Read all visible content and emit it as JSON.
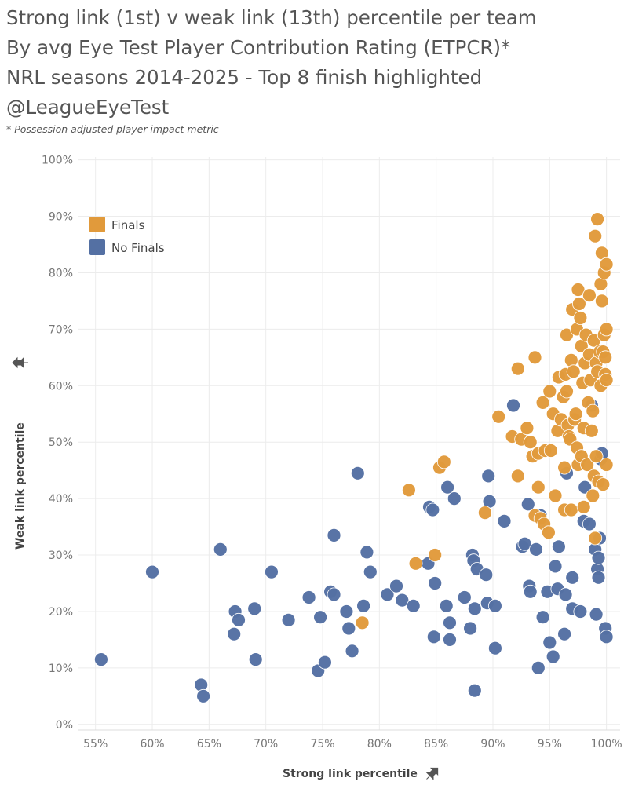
{
  "header": {
    "lines": [
      "Strong link (1st) v weak link (13th) percentile per team",
      "By avg Eye Test Player Contribution Rating (ETPCR)*",
      "NRL seasons 2014-2025 - Top 8 finish highlighted",
      "@LeagueEyeTest"
    ],
    "footnote": "* Possession adjusted player impact metric"
  },
  "chart_data": {
    "type": "scatter",
    "xlabel": "Strong link percentile",
    "ylabel": "Weak link percentile",
    "xlim": [
      0.535,
      1.012
    ],
    "ylim": [
      -0.01,
      1.005
    ],
    "x_ticks": [
      "55%",
      "60%",
      "65%",
      "70%",
      "75%",
      "80%",
      "85%",
      "90%",
      "95%",
      "100%"
    ],
    "x_tick_values": [
      0.55,
      0.6,
      0.65,
      0.7,
      0.75,
      0.8,
      0.85,
      0.9,
      0.95,
      1.0
    ],
    "y_ticks": [
      "0%",
      "10%",
      "20%",
      "30%",
      "40%",
      "50%",
      "60%",
      "70%",
      "80%",
      "90%",
      "100%"
    ],
    "y_tick_values": [
      0.0,
      0.1,
      0.2,
      0.3,
      0.4,
      0.5,
      0.6,
      0.7,
      0.8,
      0.9,
      1.0
    ],
    "grid": true,
    "legend_position": "top-left",
    "series": [
      {
        "name": "No Finals",
        "color": "#5470a3",
        "points": [
          [
            0.555,
            0.115
          ],
          [
            0.6,
            0.27
          ],
          [
            0.643,
            0.07
          ],
          [
            0.645,
            0.05
          ],
          [
            0.66,
            0.31
          ],
          [
            0.672,
            0.16
          ],
          [
            0.673,
            0.2
          ],
          [
            0.676,
            0.185
          ],
          [
            0.69,
            0.205
          ],
          [
            0.691,
            0.115
          ],
          [
            0.705,
            0.27
          ],
          [
            0.72,
            0.185
          ],
          [
            0.738,
            0.225
          ],
          [
            0.746,
            0.095
          ],
          [
            0.748,
            0.19
          ],
          [
            0.752,
            0.11
          ],
          [
            0.757,
            0.235
          ],
          [
            0.76,
            0.23
          ],
          [
            0.76,
            0.335
          ],
          [
            0.771,
            0.2
          ],
          [
            0.773,
            0.17
          ],
          [
            0.776,
            0.13
          ],
          [
            0.781,
            0.445
          ],
          [
            0.786,
            0.21
          ],
          [
            0.789,
            0.305
          ],
          [
            0.792,
            0.27
          ],
          [
            0.807,
            0.23
          ],
          [
            0.815,
            0.245
          ],
          [
            0.82,
            0.22
          ],
          [
            0.83,
            0.21
          ],
          [
            0.843,
            0.285
          ],
          [
            0.844,
            0.385
          ],
          [
            0.847,
            0.38
          ],
          [
            0.848,
            0.155
          ],
          [
            0.849,
            0.25
          ],
          [
            0.859,
            0.21
          ],
          [
            0.86,
            0.42
          ],
          [
            0.862,
            0.15
          ],
          [
            0.862,
            0.18
          ],
          [
            0.866,
            0.4
          ],
          [
            0.875,
            0.225
          ],
          [
            0.88,
            0.17
          ],
          [
            0.882,
            0.3
          ],
          [
            0.883,
            0.29
          ],
          [
            0.884,
            0.06
          ],
          [
            0.884,
            0.205
          ],
          [
            0.886,
            0.275
          ],
          [
            0.894,
            0.265
          ],
          [
            0.895,
            0.215
          ],
          [
            0.896,
            0.44
          ],
          [
            0.897,
            0.395
          ],
          [
            0.902,
            0.21
          ],
          [
            0.902,
            0.135
          ],
          [
            0.91,
            0.36
          ],
          [
            0.918,
            0.565
          ],
          [
            0.926,
            0.315
          ],
          [
            0.928,
            0.32
          ],
          [
            0.931,
            0.39
          ],
          [
            0.932,
            0.245
          ],
          [
            0.933,
            0.235
          ],
          [
            0.938,
            0.31
          ],
          [
            0.94,
            0.1
          ],
          [
            0.942,
            0.37
          ],
          [
            0.944,
            0.19
          ],
          [
            0.948,
            0.235
          ],
          [
            0.95,
            0.145
          ],
          [
            0.953,
            0.12
          ],
          [
            0.955,
            0.28
          ],
          [
            0.957,
            0.24
          ],
          [
            0.958,
            0.315
          ],
          [
            0.963,
            0.16
          ],
          [
            0.964,
            0.23
          ],
          [
            0.965,
            0.445
          ],
          [
            0.97,
            0.26
          ],
          [
            0.97,
            0.205
          ],
          [
            0.977,
            0.2
          ],
          [
            0.98,
            0.36
          ],
          [
            0.981,
            0.42
          ],
          [
            0.985,
            0.355
          ],
          [
            0.987,
            0.565
          ],
          [
            0.99,
            0.31
          ],
          [
            0.991,
            0.195
          ],
          [
            0.992,
            0.275
          ],
          [
            0.993,
            0.26
          ],
          [
            0.994,
            0.33
          ],
          [
            0.995,
            0.47
          ],
          [
            0.996,
            0.48
          ],
          [
            0.999,
            0.17
          ],
          [
            1.0,
            0.155
          ],
          [
            0.993,
            0.295
          ]
        ]
      },
      {
        "name": "Finals",
        "color": "#e19a3b",
        "points": [
          [
            0.785,
            0.18
          ],
          [
            0.826,
            0.415
          ],
          [
            0.832,
            0.285
          ],
          [
            0.849,
            0.3
          ],
          [
            0.853,
            0.455
          ],
          [
            0.857,
            0.465
          ],
          [
            0.893,
            0.375
          ],
          [
            0.905,
            0.545
          ],
          [
            0.917,
            0.51
          ],
          [
            0.922,
            0.44
          ],
          [
            0.922,
            0.63
          ],
          [
            0.925,
            0.505
          ],
          [
            0.93,
            0.525
          ],
          [
            0.933,
            0.5
          ],
          [
            0.935,
            0.475
          ],
          [
            0.937,
            0.37
          ],
          [
            0.937,
            0.65
          ],
          [
            0.94,
            0.48
          ],
          [
            0.94,
            0.42
          ],
          [
            0.942,
            0.365
          ],
          [
            0.944,
            0.57
          ],
          [
            0.945,
            0.355
          ],
          [
            0.946,
            0.485
          ],
          [
            0.949,
            0.34
          ],
          [
            0.95,
            0.59
          ],
          [
            0.951,
            0.485
          ],
          [
            0.953,
            0.55
          ],
          [
            0.955,
            0.405
          ],
          [
            0.957,
            0.52
          ],
          [
            0.958,
            0.615
          ],
          [
            0.96,
            0.54
          ],
          [
            0.962,
            0.58
          ],
          [
            0.963,
            0.455
          ],
          [
            0.963,
            0.38
          ],
          [
            0.964,
            0.62
          ],
          [
            0.965,
            0.69
          ],
          [
            0.965,
            0.59
          ],
          [
            0.966,
            0.53
          ],
          [
            0.967,
            0.51
          ],
          [
            0.968,
            0.505
          ],
          [
            0.969,
            0.645
          ],
          [
            0.969,
            0.38
          ],
          [
            0.97,
            0.735
          ],
          [
            0.971,
            0.625
          ],
          [
            0.972,
            0.54
          ],
          [
            0.973,
            0.55
          ],
          [
            0.974,
            0.49
          ],
          [
            0.974,
            0.7
          ],
          [
            0.975,
            0.77
          ],
          [
            0.975,
            0.46
          ],
          [
            0.976,
            0.745
          ],
          [
            0.977,
            0.72
          ],
          [
            0.978,
            0.67
          ],
          [
            0.978,
            0.475
          ],
          [
            0.979,
            0.605
          ],
          [
            0.98,
            0.525
          ],
          [
            0.98,
            0.385
          ],
          [
            0.981,
            0.64
          ],
          [
            0.982,
            0.69
          ],
          [
            0.983,
            0.46
          ],
          [
            0.984,
            0.57
          ],
          [
            0.985,
            0.76
          ],
          [
            0.985,
            0.655
          ],
          [
            0.986,
            0.61
          ],
          [
            0.987,
            0.52
          ],
          [
            0.988,
            0.555
          ],
          [
            0.988,
            0.405
          ],
          [
            0.989,
            0.68
          ],
          [
            0.989,
            0.44
          ],
          [
            0.99,
            0.33
          ],
          [
            0.99,
            0.865
          ],
          [
            0.991,
            0.64
          ],
          [
            0.991,
            0.475
          ],
          [
            0.992,
            0.895
          ],
          [
            0.992,
            0.625
          ],
          [
            0.993,
            0.43
          ],
          [
            0.994,
            0.66
          ],
          [
            0.995,
            0.78
          ],
          [
            0.995,
            0.6
          ],
          [
            0.996,
            0.835
          ],
          [
            0.996,
            0.75
          ],
          [
            0.997,
            0.66
          ],
          [
            0.997,
            0.425
          ],
          [
            0.998,
            0.8
          ],
          [
            0.998,
            0.69
          ],
          [
            0.999,
            0.65
          ],
          [
            0.999,
            0.62
          ],
          [
            1.0,
            0.815
          ],
          [
            1.0,
            0.7
          ],
          [
            1.0,
            0.61
          ],
          [
            1.0,
            0.46
          ]
        ]
      }
    ]
  }
}
